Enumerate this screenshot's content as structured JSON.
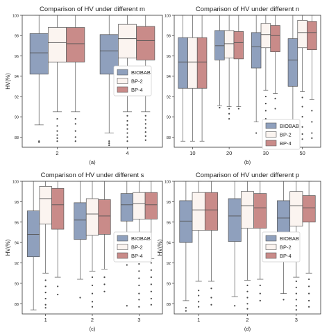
{
  "colors": {
    "BIOBAB": "#8fa0bd",
    "BP-2": "#fbf4f0",
    "BP-4": "#c98b89",
    "edge": "#555555",
    "axis": "#333333"
  },
  "chart_data": [
    {
      "type": "box",
      "title": "Comparison of HV under different m",
      "xlabel": "",
      "ylabel": "HV(%)",
      "caption": "(a)",
      "categories": [
        "2",
        "4"
      ],
      "ylim": [
        87,
        100
      ],
      "yticks": [
        "88",
        "90",
        "92",
        "94",
        "96",
        "98",
        "100"
      ],
      "legend": {
        "placement": "center-right",
        "entries": [
          "BIOBAB",
          "BP-2",
          "BP-4"
        ]
      },
      "series": [
        {
          "name": "BIOBAB",
          "boxes": [
            {
              "min": 89.2,
              "q1": 94.2,
              "median": 96.3,
              "q3": 98.2,
              "max": 100,
              "outliers": [
                87.6,
                87.5
              ]
            },
            {
              "min": 88.4,
              "q1": 94.2,
              "median": 96.5,
              "q3": 98.1,
              "max": 100,
              "outliers": [
                87.6,
                87.4,
                87.2
              ]
            }
          ]
        },
        {
          "name": "BP-2",
          "boxes": [
            {
              "min": 90.5,
              "q1": 95.4,
              "median": 97.3,
              "q3": 98.8,
              "max": 100,
              "outliers": [
                89.8,
                89.1,
                88.6,
                88.2,
                87.9,
                87.6
              ]
            },
            {
              "min": 90.5,
              "q1": 95.8,
              "median": 97.7,
              "q3": 99.1,
              "max": 100,
              "outliers": [
                90.1,
                89.6,
                89.2,
                88.8,
                88.4,
                88.0,
                87.6
              ]
            }
          ]
        },
        {
          "name": "BP-4",
          "boxes": [
            {
              "min": 90.5,
              "q1": 95.4,
              "median": 97.2,
              "q3": 98.8,
              "max": 100,
              "outliers": [
                89.8,
                89.3,
                88.6,
                88.0,
                87.6
              ]
            },
            {
              "min": 90.5,
              "q1": 95.6,
              "median": 97.5,
              "q3": 98.9,
              "max": 100,
              "outliers": [
                90.1,
                89.7,
                89.3,
                88.9,
                88.5,
                88.1,
                87.7
              ]
            }
          ]
        }
      ]
    },
    {
      "type": "box",
      "title": "Comparison of HV under different n",
      "xlabel": "",
      "ylabel": "",
      "caption": "(b)",
      "categories": [
        "10",
        "20",
        "30",
        "50"
      ],
      "ylim": [
        87,
        100
      ],
      "yticks": [
        "88",
        "90",
        "92",
        "94",
        "96",
        "98",
        "100"
      ],
      "legend": {
        "placement": "lower-right",
        "entries": [
          "BIOBAB",
          "BP-2",
          "BP-4"
        ]
      },
      "series": [
        {
          "name": "BIOBAB",
          "boxes": [
            {
              "min": 87.6,
              "q1": 92.8,
              "median": 95.4,
              "q3": 97.8,
              "max": 100,
              "outliers": []
            },
            {
              "min": 91.1,
              "q1": 95.6,
              "median": 97.0,
              "q3": 98.5,
              "max": 100,
              "outliers": [
                90.9
              ]
            },
            {
              "min": 89.5,
              "q1": 94.8,
              "median": 96.9,
              "q3": 98.3,
              "max": 100,
              "outliers": [
                88.4
              ]
            },
            {
              "min": 88.0,
              "q1": 93.0,
              "median": 95.6,
              "q3": 97.7,
              "max": 100,
              "outliers": [
                87.6
              ]
            }
          ]
        },
        {
          "name": "BP-2",
          "boxes": [
            {
              "min": 87.6,
              "q1": 92.8,
              "median": 95.4,
              "q3": 97.8,
              "max": 100,
              "outliers": []
            },
            {
              "min": 91.0,
              "q1": 95.8,
              "median": 97.2,
              "q3": 98.5,
              "max": 100,
              "outliers": [
                90.8,
                90.3,
                89.8
              ]
            },
            {
              "min": 92.6,
              "q1": 96.8,
              "median": 98.1,
              "q3": 99.2,
              "max": 100,
              "outliers": [
                92.0,
                91.3,
                90.6,
                89.8
              ]
            },
            {
              "min": 92.5,
              "q1": 96.8,
              "median": 98.3,
              "q3": 99.5,
              "max": 100,
              "outliers": [
                91.9,
                91.0,
                90.0,
                89.0,
                88.3,
                87.8
              ]
            }
          ]
        },
        {
          "name": "BP-4",
          "boxes": [
            {
              "min": 87.6,
              "q1": 92.8,
              "median": 95.4,
              "q3": 97.8,
              "max": 100,
              "outliers": []
            },
            {
              "min": 91.0,
              "q1": 95.7,
              "median": 97.3,
              "q3": 98.4,
              "max": 100,
              "outliers": [
                90.8
              ]
            },
            {
              "min": 92.3,
              "q1": 96.4,
              "median": 98.0,
              "q3": 99.0,
              "max": 100,
              "outliers": [
                91.8,
                90.8
              ]
            },
            {
              "min": 91.7,
              "q1": 96.6,
              "median": 98.3,
              "q3": 99.4,
              "max": 100,
              "outliers": [
                90.6,
                89.5,
                88.4,
                87.9
              ]
            }
          ]
        }
      ]
    },
    {
      "type": "box",
      "title": "Comparison of HV under different s",
      "xlabel": "",
      "ylabel": "HV(%)",
      "caption": "(c)",
      "categories": [
        "1",
        "2",
        "3"
      ],
      "ylim": [
        87,
        100
      ],
      "yticks": [
        "88",
        "90",
        "92",
        "94",
        "96",
        "98",
        "100"
      ],
      "legend": {
        "placement": "center-right",
        "entries": [
          "BIOBAB",
          "BP-2",
          "BP-4"
        ]
      },
      "series": [
        {
          "name": "BIOBAB",
          "boxes": [
            {
              "min": 87.4,
              "q1": 92.6,
              "median": 94.8,
              "q3": 97.1,
              "max": 100,
              "outliers": []
            },
            {
              "min": 90.4,
              "q1": 94.3,
              "median": 96.2,
              "q3": 97.9,
              "max": 100,
              "outliers": [
                88.6
              ]
            },
            {
              "min": 92.2,
              "q1": 96.1,
              "median": 97.7,
              "q3": 98.8,
              "max": 100,
              "outliers": [
                91.8,
                87.8
              ]
            }
          ]
        },
        {
          "name": "BP-2",
          "boxes": [
            {
              "min": 91.0,
              "q1": 95.8,
              "median": 98.3,
              "q3": 99.5,
              "max": 100,
              "outliers": [
                90.3,
                89.7,
                89.1,
                88.5,
                87.9,
                87.6
              ]
            },
            {
              "min": 91.2,
              "q1": 94.7,
              "median": 96.8,
              "q3": 98.3,
              "max": 100,
              "outliers": [
                90.6,
                89.8,
                89.0,
                88.2,
                87.7
              ]
            },
            {
              "min": 92.3,
              "q1": 96.3,
              "median": 97.8,
              "q3": 98.9,
              "max": 100,
              "outliers": [
                91.9,
                91.2,
                90.5,
                89.8,
                89.0,
                88.4,
                87.7
              ]
            }
          ]
        },
        {
          "name": "BP-4",
          "boxes": [
            {
              "min": 90.6,
              "q1": 95.3,
              "median": 97.7,
              "q3": 99.3,
              "max": 100,
              "outliers": [
                89.7,
                88.9
              ]
            },
            {
              "min": 91.4,
              "q1": 94.8,
              "median": 96.6,
              "q3": 98.2,
              "max": 100,
              "outliers": [
                90.6,
                89.9,
                89.2
              ]
            },
            {
              "min": 92.4,
              "q1": 96.3,
              "median": 97.7,
              "q3": 98.9,
              "max": 100,
              "outliers": [
                92.0,
                91.3,
                90.6,
                89.9,
                89.2,
                88.5,
                87.9
              ]
            }
          ]
        }
      ]
    },
    {
      "type": "box",
      "title": "Comparison of HV under different p",
      "xlabel": "",
      "ylabel": "HV(%)",
      "caption": "(d)",
      "categories": [
        "1",
        "2",
        "3"
      ],
      "ylim": [
        87,
        100
      ],
      "yticks": [
        "88",
        "90",
        "92",
        "94",
        "96",
        "98",
        "100"
      ],
      "legend": {
        "placement": "center-right",
        "entries": [
          "BIOBAB",
          "BP-2",
          "BP-4"
        ]
      },
      "series": [
        {
          "name": "BIOBAB",
          "boxes": [
            {
              "min": 88.3,
              "q1": 94.0,
              "median": 96.1,
              "q3": 98.1,
              "max": 100,
              "outliers": [
                87.6,
                87.3
              ]
            },
            {
              "min": 88.7,
              "q1": 94.1,
              "median": 96.6,
              "q3": 98.3,
              "max": 100,
              "outliers": [
                87.8
              ]
            },
            {
              "min": 89.0,
              "q1": 94.4,
              "median": 96.4,
              "q3": 98.1,
              "max": 100,
              "outliers": [
                88.4
              ]
            }
          ]
        },
        {
          "name": "BP-2",
          "boxes": [
            {
              "min": 90.2,
              "q1": 95.2,
              "median": 97.2,
              "q3": 98.9,
              "max": 100,
              "outliers": [
                89.3,
                88.8,
                88.2,
                87.7
              ]
            },
            {
              "min": 90.3,
              "q1": 95.4,
              "median": 97.6,
              "q3": 99.0,
              "max": 100,
              "outliers": [
                89.8,
                89.2,
                88.6,
                88.0,
                87.5
              ]
            },
            {
              "min": 90.6,
              "q1": 95.6,
              "median": 97.6,
              "q3": 99.0,
              "max": 100,
              "outliers": [
                90.2,
                89.6,
                89.0,
                88.4,
                87.8,
                87.4
              ]
            }
          ]
        },
        {
          "name": "BP-4",
          "boxes": [
            {
              "min": 90.2,
              "q1": 95.2,
              "median": 97.2,
              "q3": 98.9,
              "max": 100,
              "outliers": [
                89.5,
                88.6,
                87.9
              ]
            },
            {
              "min": 90.4,
              "q1": 95.4,
              "median": 97.4,
              "q3": 98.8,
              "max": 100,
              "outliers": [
                89.8,
                89.0,
                88.3
              ]
            },
            {
              "min": 91.0,
              "q1": 96.0,
              "median": 97.4,
              "q3": 98.6,
              "max": 100,
              "outliers": [
                90.4,
                89.7,
                89.0,
                88.3,
                87.7
              ]
            }
          ]
        }
      ]
    }
  ]
}
